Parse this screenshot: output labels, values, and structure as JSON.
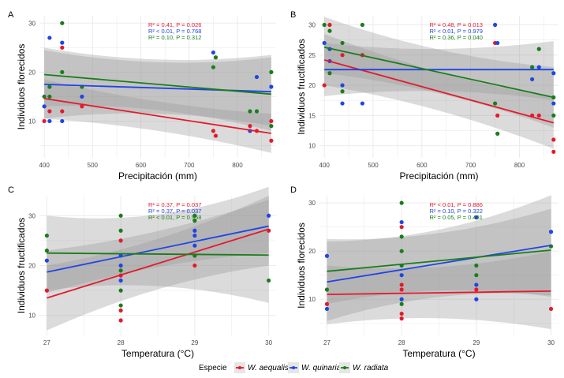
{
  "colors": {
    "W. aequalis": "#e41a2c",
    "W. quinaria": "#1f45e6",
    "W. radiata": "#1a7d1a",
    "band": "#999999",
    "grid": "#ebebeb"
  },
  "legend": {
    "title": "Especie",
    "entries": [
      "W. aequalis",
      "W. quinaria",
      "W. radiata"
    ]
  },
  "chart_data": [
    {
      "panel": "A",
      "type": "scatter",
      "xlabel": "Precipitación (mm)",
      "ylabel": "Individuos florecidos",
      "xlim": [
        390,
        880
      ],
      "ylim": [
        2.5,
        31.5
      ],
      "xticks": [
        400,
        500,
        600,
        700,
        800
      ],
      "yticks": [
        10,
        20,
        30
      ],
      "stats": [
        {
          "species": "W. aequalis",
          "r2": "R² = 0.41",
          "p": "P = 0.026"
        },
        {
          "species": "W. quinaria",
          "r2": "R² < 0.01",
          "p": "P = 0.768"
        },
        {
          "species": "W. radiata",
          "r2": "R² = 0.10",
          "p": "P = 0.312"
        }
      ],
      "series": [
        {
          "name": "W. aequalis",
          "points": [
            [
              400,
              10
            ],
            [
              411,
              12
            ],
            [
              437,
              25
            ],
            [
              437,
              12
            ],
            [
              478,
              13
            ],
            [
              750,
              8
            ],
            [
              755,
              7
            ],
            [
              826,
              9
            ],
            [
              840,
              8
            ],
            [
              870,
              10
            ],
            [
              870,
              6
            ]
          ],
          "fit": [
            [
              400,
              14.6
            ],
            [
              870,
              7.5
            ]
          ],
          "ci_lo": [
            10.5,
            3.5
          ],
          "ci_hi": [
            18.5,
            11.5
          ]
        },
        {
          "name": "W. quinaria",
          "points": [
            [
              400,
              13
            ],
            [
              411,
              27
            ],
            [
              411,
              10
            ],
            [
              437,
              26
            ],
            [
              437,
              10
            ],
            [
              478,
              15
            ],
            [
              750,
              24
            ],
            [
              826,
              8
            ],
            [
              840,
              19
            ],
            [
              870,
              17
            ]
          ],
          "fit": [
            [
              400,
              17.5
            ],
            [
              870,
              16.0
            ]
          ],
          "ci_lo": [
            10.5,
            9
          ],
          "ci_hi": [
            24.5,
            23
          ]
        },
        {
          "name": "W. radiata",
          "points": [
            [
              400,
              15
            ],
            [
              411,
              17
            ],
            [
              411,
              15
            ],
            [
              437,
              30
            ],
            [
              437,
              20
            ],
            [
              478,
              17
            ],
            [
              750,
              21
            ],
            [
              755,
              23
            ],
            [
              826,
              12
            ],
            [
              840,
              12
            ],
            [
              870,
              20
            ],
            [
              870,
              9
            ]
          ],
          "fit": [
            [
              400,
              19.5
            ],
            [
              870,
              15.5
            ]
          ],
          "ci_lo": [
            13,
            8
          ],
          "ci_hi": [
            25,
            23.5
          ]
        }
      ]
    },
    {
      "panel": "B",
      "type": "scatter",
      "xlabel": "Precipitación (mm)",
      "ylabel": "Individuos fructificados",
      "xlim": [
        390,
        880
      ],
      "ylim": [
        8,
        31.5
      ],
      "xticks": [
        400,
        500,
        600,
        700,
        800
      ],
      "yticks": [
        10,
        15,
        20,
        25,
        30
      ],
      "stats": [
        {
          "species": "W. aequalis",
          "r2": "R² = 0.48",
          "p": "P = 0.013"
        },
        {
          "species": "W. quinaria",
          "r2": "R² < 0.01",
          "p": "P = 0.979"
        },
        {
          "species": "W. radiata",
          "r2": "R² = 0.36",
          "p": "P = 0.040"
        }
      ],
      "series": [
        {
          "name": "W. aequalis",
          "points": [
            [
              400,
              20
            ],
            [
              411,
              30
            ],
            [
              437,
              25
            ],
            [
              478,
              25
            ],
            [
              750,
              27
            ],
            [
              755,
              15
            ],
            [
              826,
              15
            ],
            [
              840,
              15
            ],
            [
              870,
              11
            ],
            [
              870,
              9
            ]
          ],
          "fit": [
            [
              400,
              24.2
            ],
            [
              870,
              13.8
            ]
          ],
          "ci_lo": [
            20,
            9.5
          ],
          "ci_hi": [
            28.5,
            18
          ]
        },
        {
          "name": "W. quinaria",
          "points": [
            [
              400,
              27
            ],
            [
              411,
              26
            ],
            [
              411,
              24
            ],
            [
              437,
              20
            ],
            [
              437,
              17
            ],
            [
              478,
              17
            ],
            [
              750,
              30
            ],
            [
              755,
              27
            ],
            [
              826,
              21
            ],
            [
              840,
              23
            ],
            [
              870,
              22
            ],
            [
              870,
              17
            ]
          ],
          "fit": [
            [
              400,
              22.6
            ],
            [
              870,
              22.6
            ]
          ],
          "ci_lo": [
            18.2,
            17.5
          ],
          "ci_hi": [
            27,
            27.3
          ]
        },
        {
          "name": "W. radiata",
          "points": [
            [
              400,
              30
            ],
            [
              411,
              29
            ],
            [
              411,
              22
            ],
            [
              437,
              27
            ],
            [
              437,
              19
            ],
            [
              478,
              30
            ],
            [
              750,
              17
            ],
            [
              755,
              12
            ],
            [
              826,
              23
            ],
            [
              840,
              26
            ],
            [
              870,
              18
            ],
            [
              870,
              15
            ]
          ],
          "fit": [
            [
              400,
              26.3
            ],
            [
              870,
              18.0
            ]
          ],
          "ci_lo": [
            22,
            13
          ],
          "ci_hi": [
            31.3,
            23
          ]
        }
      ]
    },
    {
      "panel": "C",
      "type": "scatter",
      "xlabel": "Temperatura (°C)",
      "ylabel": "Individuos fructificados",
      "xlim": [
        26.9,
        30.1
      ],
      "ylim": [
        6,
        34
      ],
      "xticks": [
        27,
        28,
        29,
        30
      ],
      "yticks": [
        10,
        20,
        30
      ],
      "stats": [
        {
          "species": "W. aequalis",
          "r2": "R² = 0.37",
          "p": "P = 0.037"
        },
        {
          "species": "W. quinaria",
          "r2": "R² = 0.37",
          "p": "P = 0.037"
        },
        {
          "species": "W. radiata",
          "r2": "R² < 0.01",
          "p": "P = 0.958"
        }
      ],
      "series": [
        {
          "name": "W. aequalis",
          "points": [
            [
              27,
              15
            ],
            [
              28,
              25
            ],
            [
              28,
              18
            ],
            [
              28,
              11
            ],
            [
              28,
              9
            ],
            [
              29,
              20
            ],
            [
              29,
              22
            ],
            [
              30,
              27
            ]
          ],
          "fit": [
            [
              27,
              13.5
            ],
            [
              30,
              27.3
            ]
          ],
          "ci_lo": [
            7,
            20
          ],
          "ci_hi": [
            20,
            34
          ]
        },
        {
          "name": "W. quinaria",
          "points": [
            [
              27,
              21
            ],
            [
              28,
              22
            ],
            [
              28,
              20
            ],
            [
              28,
              17
            ],
            [
              29,
              27
            ],
            [
              29,
              26
            ],
            [
              29,
              24
            ],
            [
              30,
              30
            ]
          ],
          "fit": [
            [
              27,
              18.7
            ],
            [
              30,
              27.9
            ]
          ],
          "ci_lo": [
            14.5,
            22.5
          ],
          "ci_hi": [
            23,
            33.2
          ]
        },
        {
          "name": "W. radiata",
          "points": [
            [
              27,
              26
            ],
            [
              27,
              23
            ],
            [
              28,
              30
            ],
            [
              28,
              27
            ],
            [
              28,
              19
            ],
            [
              28,
              15
            ],
            [
              28,
              12
            ],
            [
              29,
              30
            ],
            [
              29,
              29
            ],
            [
              29,
              22
            ],
            [
              30,
              17
            ]
          ],
          "fit": [
            [
              27,
              22.5
            ],
            [
              30,
              22.1
            ]
          ],
          "ci_lo": [
            15,
            12.5
          ],
          "ci_hi": [
            30,
            35.8
          ]
        }
      ]
    },
    {
      "panel": "D",
      "type": "scatter",
      "xlabel": "Temperatura (°C)",
      "ylabel": "Individuos florecidos",
      "xlim": [
        26.9,
        30.1
      ],
      "ylim": [
        2.5,
        31.5
      ],
      "xticks": [
        27,
        28,
        29,
        30
      ],
      "yticks": [
        10,
        20,
        30
      ],
      "stats": [
        {
          "species": "W. aequalis",
          "r2": "R² < 0.01",
          "p": "P = 0.886"
        },
        {
          "species": "W. quinaria",
          "r2": "R² = 0.10",
          "p": "P = 0.322"
        },
        {
          "species": "W. radiata",
          "r2": "R² = 0.05",
          "p": "P = 0.481"
        }
      ],
      "series": [
        {
          "name": "W. aequalis",
          "points": [
            [
              27,
              9
            ],
            [
              28,
              25
            ],
            [
              28,
              13
            ],
            [
              28,
              12
            ],
            [
              28,
              7
            ],
            [
              28,
              6
            ],
            [
              29,
              12
            ],
            [
              30,
              8
            ]
          ],
          "fit": [
            [
              27,
              11
            ],
            [
              30,
              11.7
            ]
          ],
          "ci_lo": [
            4.8,
            3.8
          ],
          "ci_hi": [
            17,
            20
          ]
        },
        {
          "name": "W. quinaria",
          "points": [
            [
              27,
              19
            ],
            [
              27,
              8
            ],
            [
              28,
              26
            ],
            [
              28,
              15
            ],
            [
              28,
              10
            ],
            [
              29,
              27
            ],
            [
              29,
              13
            ],
            [
              29,
              10
            ],
            [
              30,
              24
            ]
          ],
          "fit": [
            [
              27,
              13.6
            ],
            [
              30,
              21.2
            ]
          ],
          "ci_lo": [
            5.5,
            10.8
          ],
          "ci_hi": [
            22,
            31.6
          ]
        },
        {
          "name": "W. radiata",
          "points": [
            [
              27,
              12
            ],
            [
              28,
              30
            ],
            [
              28,
              23
            ],
            [
              28,
              20
            ],
            [
              28,
              17
            ],
            [
              28,
              9
            ],
            [
              29,
              17
            ],
            [
              29,
              15
            ],
            [
              30,
              21
            ]
          ],
          "fit": [
            [
              27,
              15.8
            ],
            [
              30,
              20.2
            ]
          ],
          "ci_lo": [
            9,
            10.5
          ],
          "ci_hi": [
            22.5,
            28.8
          ]
        }
      ]
    }
  ]
}
